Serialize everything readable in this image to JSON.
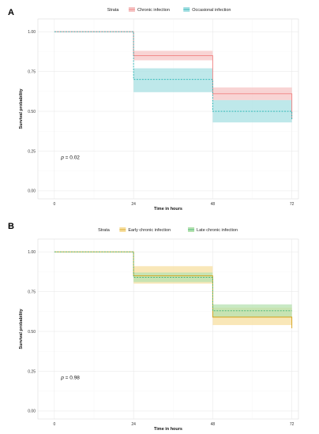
{
  "chart_data": [
    {
      "panel_label": "A",
      "type": "line",
      "legend": {
        "title": "Strata",
        "placement": "top",
        "entries": [
          {
            "label": "Chronic infection",
            "color": "#f08080",
            "fill": "#f6c5c5"
          },
          {
            "label": "Occasional infection",
            "color": "#20b2b2",
            "fill": "#a8e0e3"
          }
        ]
      },
      "xlabel": "Time in hours",
      "ylabel": "Survival probability",
      "xticks": [
        0,
        24,
        48,
        72
      ],
      "yticks": [
        0.0,
        0.25,
        0.5,
        0.75,
        1.0
      ],
      "ytick_labels": [
        "0.00",
        "0.25",
        "0.50",
        "0.75",
        "1.00"
      ],
      "xlim": [
        -5,
        74
      ],
      "ylim": [
        -0.05,
        1.08
      ],
      "grid": true,
      "pvalue_prefix": "p",
      "pvalue_suffix": " = 0.02",
      "series": [
        {
          "name": "Chronic infection",
          "color": "#f08080",
          "fill": "#f6c5c5",
          "linestyle": "solid",
          "steps": [
            [
              0,
              1.0
            ],
            [
              24,
              0.85
            ],
            [
              48,
              0.61
            ],
            [
              72,
              0.45
            ]
          ],
          "ci_lower": [
            1.0,
            0.82,
            0.57,
            0.57
          ],
          "ci_upper": [
            1.0,
            0.88,
            0.65,
            0.65
          ]
        },
        {
          "name": "Occasional infection",
          "color": "#20b2b2",
          "fill": "#a8e0e3",
          "linestyle": "dashed",
          "steps": [
            [
              0,
              1.0
            ],
            [
              24,
              0.7
            ],
            [
              48,
              0.5
            ],
            [
              72,
              0.45
            ]
          ],
          "ci_lower": [
            1.0,
            0.62,
            0.43,
            0.43
          ],
          "ci_upper": [
            1.0,
            0.77,
            0.57,
            0.57
          ]
        }
      ]
    },
    {
      "panel_label": "B",
      "type": "line",
      "legend": {
        "title": "Strata",
        "placement": "top",
        "entries": [
          {
            "label": "Early chronic infection",
            "color": "#d4a017",
            "fill": "#f7dfa0"
          },
          {
            "label": "Late chronic infection",
            "color": "#3cb371",
            "fill": "#b5e2b0"
          }
        ]
      },
      "xlabel": "Time in hours",
      "ylabel": "Survival probability",
      "xticks": [
        0,
        24,
        48,
        72
      ],
      "yticks": [
        0.0,
        0.25,
        0.5,
        0.75,
        1.0
      ],
      "ytick_labels": [
        "0.00",
        "0.25",
        "0.50",
        "0.75",
        "1.00"
      ],
      "xlim": [
        -5,
        74
      ],
      "ylim": [
        -0.05,
        1.08
      ],
      "grid": true,
      "pvalue_prefix": "p",
      "pvalue_suffix": " = 0.98",
      "series": [
        {
          "name": "Early chronic infection",
          "color": "#d4a017",
          "fill": "#f7dfa0",
          "linestyle": "solid",
          "steps": [
            [
              0,
              1.0
            ],
            [
              24,
              0.85
            ],
            [
              48,
              0.59
            ],
            [
              72,
              0.52
            ]
          ],
          "ci_lower": [
            1.0,
            0.8,
            0.54,
            0.54
          ],
          "ci_upper": [
            1.0,
            0.91,
            0.65,
            0.65
          ]
        },
        {
          "name": "Late chronic infection",
          "color": "#3cb371",
          "fill": "#b5e2b0",
          "linestyle": "dashed",
          "steps": [
            [
              0,
              1.0
            ],
            [
              24,
              0.84
            ],
            [
              48,
              0.63
            ],
            [
              72,
              0.63
            ]
          ],
          "ci_lower": [
            1.0,
            0.81,
            0.59,
            0.59
          ],
          "ci_upper": [
            1.0,
            0.87,
            0.67,
            0.67
          ]
        }
      ]
    }
  ]
}
